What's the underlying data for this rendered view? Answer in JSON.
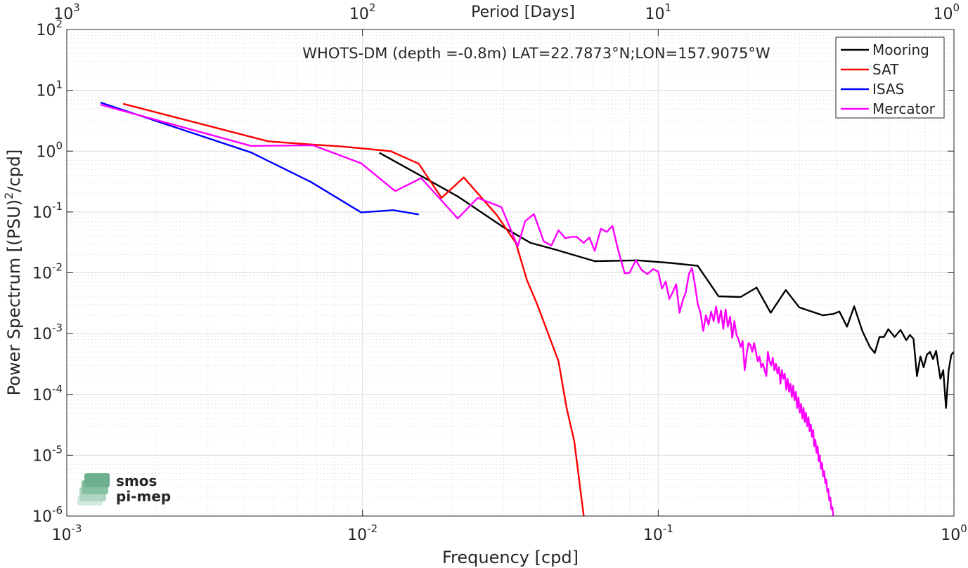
{
  "chart_data": {
    "type": "line",
    "title": "WHOTS-DM (depth =-0.8m) LAT=22.7873°N;LON=157.9075°W",
    "xlabel": "Frequency [cpd]",
    "ylabel_main": "Power Spectrum [(PSU)",
    "ylabel_sup": "2",
    "ylabel_end": "/cpd]",
    "top_axis_label": "Period [Days]",
    "x_scale": "log",
    "y_scale": "log",
    "xlim": [
      0.001,
      1
    ],
    "ylim": [
      1e-06,
      100
    ],
    "grid": true,
    "legend_position": "top-right",
    "x_ticks": [
      {
        "value": 0.001,
        "base": "10",
        "exp": "-3"
      },
      {
        "value": 0.01,
        "base": "10",
        "exp": "-2"
      },
      {
        "value": 0.1,
        "base": "10",
        "exp": "-1"
      },
      {
        "value": 1,
        "base": "10",
        "exp": "0"
      }
    ],
    "y_ticks": [
      {
        "value": 1e-06,
        "base": "10",
        "exp": "-6"
      },
      {
        "value": 1e-05,
        "base": "10",
        "exp": "-5"
      },
      {
        "value": 0.0001,
        "base": "10",
        "exp": "-4"
      },
      {
        "value": 0.001,
        "base": "10",
        "exp": "-3"
      },
      {
        "value": 0.01,
        "base": "10",
        "exp": "-2"
      },
      {
        "value": 0.1,
        "base": "10",
        "exp": "-1"
      },
      {
        "value": 1,
        "base": "10",
        "exp": "0"
      },
      {
        "value": 10,
        "base": "10",
        "exp": "1"
      },
      {
        "value": 100,
        "base": "10",
        "exp": "2"
      }
    ],
    "top_ticks": [
      {
        "frequency": 0.001,
        "base": "10",
        "exp": "3"
      },
      {
        "frequency": 0.01,
        "base": "10",
        "exp": "2"
      },
      {
        "frequency": 0.1,
        "base": "10",
        "exp": "1"
      },
      {
        "frequency": 1,
        "base": "10",
        "exp": "0"
      }
    ],
    "series": [
      {
        "name": "Mooring",
        "color": "#000000",
        "points": [
          [
            0.0114,
            0.94
          ],
          [
            0.0158,
            0.39
          ],
          [
            0.021,
            0.18
          ],
          [
            0.03,
            0.056
          ],
          [
            0.037,
            0.031
          ],
          [
            0.045,
            0.024
          ],
          [
            0.061,
            0.0155
          ],
          [
            0.085,
            0.016
          ],
          [
            0.11,
            0.0145
          ],
          [
            0.136,
            0.013
          ],
          [
            0.16,
            0.0041
          ],
          [
            0.19,
            0.004
          ],
          [
            0.215,
            0.0057
          ],
          [
            0.24,
            0.0022
          ],
          [
            0.27,
            0.0052
          ],
          [
            0.3,
            0.0027
          ],
          [
            0.33,
            0.0023
          ],
          [
            0.36,
            0.002
          ],
          [
            0.39,
            0.0021
          ],
          [
            0.41,
            0.0023
          ],
          [
            0.435,
            0.0013
          ],
          [
            0.46,
            0.0028
          ],
          [
            0.49,
            0.0011
          ],
          [
            0.52,
            0.0006
          ],
          [
            0.54,
            0.00048
          ],
          [
            0.56,
            0.00088
          ],
          [
            0.58,
            0.00088
          ],
          [
            0.6,
            0.00118
          ],
          [
            0.63,
            0.00088
          ],
          [
            0.66,
            0.00115
          ],
          [
            0.69,
            0.00078
          ],
          [
            0.71,
            0.00095
          ],
          [
            0.73,
            0.00082
          ],
          [
            0.75,
            0.0002
          ],
          [
            0.77,
            0.00042
          ],
          [
            0.79,
            0.00028
          ],
          [
            0.81,
            0.00045
          ],
          [
            0.83,
            0.0005
          ],
          [
            0.85,
            0.00038
          ],
          [
            0.87,
            0.00052
          ],
          [
            0.9,
            0.00018
          ],
          [
            0.92,
            0.00025
          ],
          [
            0.94,
            6e-05
          ],
          [
            0.96,
            0.00025
          ],
          [
            0.98,
            0.00045
          ],
          [
            1.0,
            0.0005
          ]
        ]
      },
      {
        "name": "SAT",
        "color": "#ff0000",
        "points": [
          [
            0.00155,
            6.0
          ],
          [
            0.0048,
            1.45
          ],
          [
            0.0068,
            1.28
          ],
          [
            0.0084,
            1.2
          ],
          [
            0.0119,
            1.02
          ],
          [
            0.0125,
            0.99
          ],
          [
            0.0155,
            0.62
          ],
          [
            0.0185,
            0.17
          ],
          [
            0.022,
            0.37
          ],
          [
            0.0285,
            0.088
          ],
          [
            0.033,
            0.031
          ],
          [
            0.036,
            0.0075
          ],
          [
            0.039,
            0.003
          ],
          [
            0.046,
            0.00035
          ],
          [
            0.049,
            6e-05
          ],
          [
            0.052,
            1.7e-05
          ],
          [
            0.056,
            1e-06
          ]
        ]
      },
      {
        "name": "ISAS",
        "color": "#0000ff",
        "points": [
          [
            0.0013,
            6.3
          ],
          [
            0.0042,
            0.95
          ],
          [
            0.0067,
            0.31
          ],
          [
            0.0099,
            0.098
          ],
          [
            0.0127,
            0.107
          ],
          [
            0.0155,
            0.091
          ]
        ]
      },
      {
        "name": "Mercator",
        "color": "#ff00ff",
        "points": [
          [
            0.0013,
            5.8
          ],
          [
            0.0042,
            1.22
          ],
          [
            0.0068,
            1.25
          ],
          [
            0.0099,
            0.63
          ],
          [
            0.0129,
            0.22
          ],
          [
            0.0158,
            0.36
          ],
          [
            0.021,
            0.078
          ],
          [
            0.0245,
            0.17
          ],
          [
            0.0295,
            0.12
          ],
          [
            0.0335,
            0.027
          ],
          [
            0.0355,
            0.071
          ],
          [
            0.038,
            0.092
          ],
          [
            0.041,
            0.033
          ],
          [
            0.0435,
            0.028
          ],
          [
            0.046,
            0.05
          ],
          [
            0.0485,
            0.037
          ],
          [
            0.051,
            0.039
          ],
          [
            0.053,
            0.039
          ],
          [
            0.056,
            0.031
          ],
          [
            0.0585,
            0.038
          ],
          [
            0.061,
            0.023
          ],
          [
            0.064,
            0.053
          ],
          [
            0.067,
            0.047
          ],
          [
            0.07,
            0.059
          ],
          [
            0.073,
            0.025
          ],
          [
            0.077,
            0.0098
          ],
          [
            0.08,
            0.01
          ],
          [
            0.084,
            0.016
          ],
          [
            0.088,
            0.011
          ],
          [
            0.092,
            0.0095
          ],
          [
            0.096,
            0.0115
          ],
          [
            0.1,
            0.0105
          ],
          [
            0.103,
            0.0055
          ],
          [
            0.106,
            0.0072
          ],
          [
            0.109,
            0.0037
          ],
          [
            0.112,
            0.0048
          ],
          [
            0.115,
            0.0065
          ],
          [
            0.118,
            0.0022
          ],
          [
            0.121,
            0.0035
          ],
          [
            0.124,
            0.0048
          ],
          [
            0.127,
            0.0095
          ],
          [
            0.13,
            0.012
          ],
          [
            0.133,
            0.0065
          ],
          [
            0.136,
            0.0031
          ],
          [
            0.139,
            0.0022
          ],
          [
            0.142,
            0.0011
          ],
          [
            0.145,
            0.002
          ],
          [
            0.148,
            0.0014
          ],
          [
            0.151,
            0.0023
          ],
          [
            0.154,
            0.0016
          ],
          [
            0.157,
            0.0028
          ],
          [
            0.16,
            0.0015
          ],
          [
            0.163,
            0.0024
          ],
          [
            0.166,
            0.0012
          ],
          [
            0.169,
            0.0025
          ],
          [
            0.172,
            0.0013
          ],
          [
            0.175,
            0.0019
          ],
          [
            0.178,
            0.00085
          ],
          [
            0.181,
            0.0016
          ],
          [
            0.184,
            0.00095
          ],
          [
            0.187,
            0.0008
          ],
          [
            0.19,
            0.0006
          ],
          [
            0.193,
            0.00075
          ],
          [
            0.196,
            0.00025
          ],
          [
            0.199,
            0.00045
          ],
          [
            0.202,
            0.0007
          ],
          [
            0.205,
            0.00065
          ],
          [
            0.208,
            0.0005
          ],
          [
            0.211,
            0.0007
          ],
          [
            0.214,
            0.0005
          ],
          [
            0.217,
            0.00035
          ],
          [
            0.22,
            0.00042
          ],
          [
            0.223,
            0.00028
          ],
          [
            0.226,
            0.00032
          ],
          [
            0.229,
            0.00025
          ],
          [
            0.232,
            0.0002
          ],
          [
            0.235,
            0.0005
          ],
          [
            0.238,
            0.00035
          ],
          [
            0.241,
            0.0003
          ],
          [
            0.244,
            0.0004
          ],
          [
            0.247,
            0.00025
          ],
          [
            0.25,
            0.00032
          ],
          [
            0.253,
            0.00022
          ],
          [
            0.256,
            0.00028
          ],
          [
            0.259,
            0.00015
          ],
          [
            0.262,
            0.00025
          ],
          [
            0.265,
            0.00018
          ],
          [
            0.268,
            0.00022
          ],
          [
            0.271,
            0.00012
          ],
          [
            0.274,
            0.00018
          ],
          [
            0.277,
            0.00011
          ],
          [
            0.28,
            0.00015
          ],
          [
            0.283,
            9e-05
          ],
          [
            0.286,
            0.00014
          ],
          [
            0.289,
            8e-05
          ],
          [
            0.292,
            0.00011
          ],
          [
            0.295,
            6e-05
          ],
          [
            0.298,
            9e-05
          ],
          [
            0.301,
            5e-05
          ],
          [
            0.304,
            7e-05
          ],
          [
            0.307,
            4e-05
          ],
          [
            0.31,
            6e-05
          ],
          [
            0.313,
            3.5e-05
          ],
          [
            0.316,
            5e-05
          ],
          [
            0.319,
            3e-05
          ],
          [
            0.322,
            4.2e-05
          ],
          [
            0.325,
            2.5e-05
          ],
          [
            0.328,
            3.2e-05
          ],
          [
            0.331,
            2e-05
          ],
          [
            0.334,
            2.6e-05
          ],
          [
            0.337,
            1.4e-05
          ],
          [
            0.34,
            1.8e-05
          ],
          [
            0.343,
            1.1e-05
          ],
          [
            0.346,
            1.4e-05
          ],
          [
            0.349,
            8e-06
          ],
          [
            0.352,
            1e-05
          ],
          [
            0.355,
            6e-06
          ],
          [
            0.358,
            7.5e-06
          ],
          [
            0.361,
            4.5e-06
          ],
          [
            0.364,
            5.5e-06
          ],
          [
            0.367,
            3.5e-06
          ],
          [
            0.37,
            4e-06
          ],
          [
            0.373,
            2.5e-06
          ],
          [
            0.376,
            2.8e-06
          ],
          [
            0.379,
            1.8e-06
          ],
          [
            0.382,
            2e-06
          ],
          [
            0.385,
            1.3e-06
          ],
          [
            0.388,
            1.4e-06
          ],
          [
            0.391,
            1e-06
          ]
        ]
      }
    ],
    "watermark": {
      "line1": "smos",
      "line2": "pi-mep"
    }
  }
}
